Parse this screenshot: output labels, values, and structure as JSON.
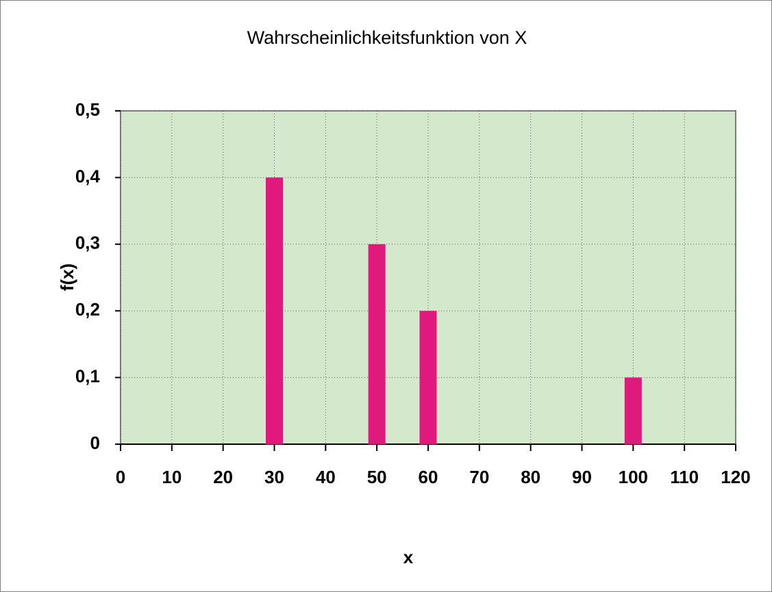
{
  "chart_data": {
    "type": "bar",
    "title": "Wahrscheinlichkeitsfunktion von X",
    "x_label": "x",
    "y_label": "f(x)",
    "x": [
      30,
      50,
      60,
      100
    ],
    "values": [
      0.4,
      0.3,
      0.2,
      0.1
    ],
    "color": "#e0197d",
    "xlim": [
      0,
      120
    ],
    "xticks": [
      0,
      10,
      20,
      30,
      40,
      50,
      60,
      70,
      80,
      90,
      100,
      110,
      120
    ],
    "ylim": [
      0,
      0.5
    ],
    "yticks": [
      0,
      {
        "value": 0.1,
        "label": "0,1"
      },
      {
        "value": 0.2,
        "label": "0,2"
      },
      {
        "value": 0.3,
        "label": "0,3"
      },
      {
        "value": 0.4,
        "label": "0,4"
      },
      {
        "value": 0.5,
        "label": "0,5"
      }
    ],
    "grid": true
  }
}
